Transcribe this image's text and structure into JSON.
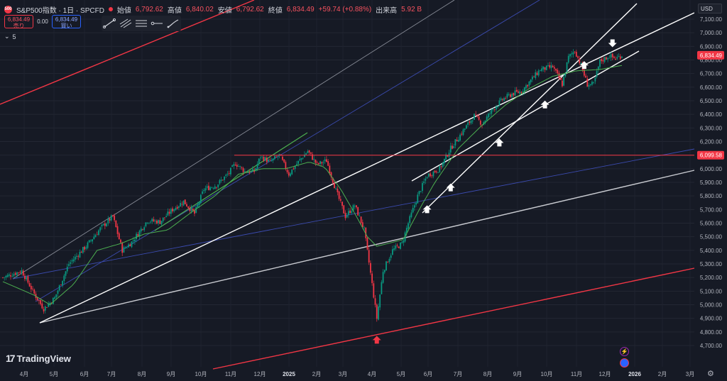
{
  "header": {
    "badge": "500",
    "symbol": "S&P500指数 · 1日 · SPCFD",
    "open_label": "始値",
    "open": "6,792.62",
    "high_label": "高値",
    "high": "6,840.02",
    "low_label": "安値",
    "low": "6,792.62",
    "close_label": "終値",
    "close": "6,834.49",
    "change": "+59.74 (+0.88%)",
    "volume_label": "出来高",
    "volume": "5.92 B"
  },
  "trade": {
    "sell_price": "6,834.49",
    "sell_label": "売り",
    "spread": "0.00",
    "buy_price": "6,834.49",
    "buy_label": "買い"
  },
  "indicator": {
    "chevron": "⌄",
    "count": "5"
  },
  "currency": "USD",
  "brand": {
    "mark": "17",
    "name": "TradingView"
  },
  "colors": {
    "bull": "#089981",
    "bear": "#f23645",
    "sma": "#4caf50",
    "white_line": "#ffffff",
    "blue_line": "#2962ff",
    "red_line": "#f23645"
  },
  "icons": [
    "trend-line-icon",
    "pitchfork-icon",
    "fib-icon",
    "ray-icon",
    "brush-icon"
  ],
  "chart_data": {
    "type": "candlestick",
    "price_axis": {
      "min": 4700,
      "max": 7100,
      "ticks": [
        4700,
        4800,
        4900,
        5000,
        5100,
        5200,
        5300,
        5400,
        5500,
        5600,
        5700,
        5800,
        5900,
        6000,
        6100,
        6200,
        6300,
        6400,
        6500,
        6600,
        6700,
        6800,
        6900,
        7000,
        7100
      ],
      "tick_labels": [
        "4,700.00",
        "4,800.00",
        "4,900.00",
        "5,000.00",
        "5,100.00",
        "5,200.00",
        "5,300.00",
        "5,400.00",
        "5,500.00",
        "5,600.00",
        "5,700.00",
        "5,800.00",
        "5,900.00",
        "6,000.00",
        "6,100.00",
        "6,200.00",
        "6,300.00",
        "6,400.00",
        "6,500.00",
        "6,600.00",
        "6,700.00",
        "6,800.00",
        "6,900.00",
        "7,000.00",
        "7,100.00"
      ]
    },
    "time_axis": {
      "labels": [
        "4月",
        "5月",
        "6月",
        "7月",
        "8月",
        "9月",
        "10月",
        "11月",
        "12月",
        "2025",
        "2月",
        "3月",
        "4月",
        "5月",
        "6月",
        "7月",
        "8月",
        "9月",
        "10月",
        "11月",
        "12月",
        "2026",
        "2月",
        "3月"
      ],
      "bold": [
        "2025",
        "2026"
      ]
    },
    "last_price_label": "6,834.49",
    "horizontal_level": {
      "value": 6099.58,
      "label": "6,099.58"
    },
    "path": [
      [
        0,
        5200
      ],
      [
        12,
        5250
      ],
      [
        20,
        5080
      ],
      [
        26,
        4970
      ],
      [
        33,
        5050
      ],
      [
        42,
        5300
      ],
      [
        53,
        5430
      ],
      [
        62,
        5560
      ],
      [
        70,
        5650
      ],
      [
        76,
        5400
      ],
      [
        82,
        5460
      ],
      [
        92,
        5620
      ],
      [
        100,
        5610
      ],
      [
        108,
        5700
      ],
      [
        115,
        5760
      ],
      [
        122,
        5670
      ],
      [
        128,
        5850
      ],
      [
        136,
        5880
      ],
      [
        144,
        5970
      ],
      [
        148,
        6040
      ],
      [
        154,
        5980
      ],
      [
        160,
        5980
      ],
      [
        164,
        6090
      ],
      [
        170,
        6050
      ],
      [
        176,
        6100
      ],
      [
        182,
        5960
      ],
      [
        188,
        6050
      ],
      [
        194,
        6130
      ],
      [
        200,
        6030
      ],
      [
        206,
        6060
      ],
      [
        212,
        5840
      ],
      [
        218,
        5650
      ],
      [
        224,
        5730
      ],
      [
        230,
        5550
      ],
      [
        235,
        5150
      ],
      [
        238,
        4900
      ],
      [
        242,
        5250
      ],
      [
        248,
        5400
      ],
      [
        254,
        5450
      ],
      [
        258,
        5600
      ],
      [
        264,
        5800
      ],
      [
        270,
        5950
      ],
      [
        278,
        6000
      ],
      [
        285,
        6150
      ],
      [
        293,
        6280
      ],
      [
        300,
        6390
      ],
      [
        305,
        6330
      ],
      [
        312,
        6440
      ],
      [
        318,
        6510
      ],
      [
        324,
        6550
      ],
      [
        330,
        6570
      ],
      [
        336,
        6650
      ],
      [
        342,
        6730
      ],
      [
        350,
        6750
      ],
      [
        356,
        6620
      ],
      [
        360,
        6820
      ],
      [
        364,
        6870
      ],
      [
        368,
        6760
      ],
      [
        372,
        6620
      ],
      [
        376,
        6620
      ],
      [
        380,
        6790
      ],
      [
        386,
        6830
      ],
      [
        390,
        6810
      ],
      [
        394,
        6834.49
      ]
    ],
    "sma_path": [
      [
        0,
        5170
      ],
      [
        20,
        5070
      ],
      [
        30,
        5000
      ],
      [
        45,
        5150
      ],
      [
        60,
        5400
      ],
      [
        75,
        5450
      ],
      [
        90,
        5520
      ],
      [
        105,
        5550
      ],
      [
        120,
        5680
      ],
      [
        135,
        5800
      ],
      [
        150,
        5960
      ],
      [
        165,
        6000
      ],
      [
        180,
        6000
      ],
      [
        195,
        6050
      ],
      [
        205,
        6010
      ],
      [
        215,
        5850
      ],
      [
        225,
        5650
      ],
      [
        232,
        5500
      ],
      [
        238,
        5430
      ],
      [
        245,
        5450
      ],
      [
        255,
        5480
      ],
      [
        265,
        5700
      ],
      [
        275,
        5900
      ],
      [
        290,
        6150
      ],
      [
        305,
        6320
      ],
      [
        320,
        6470
      ],
      [
        335,
        6590
      ],
      [
        350,
        6680
      ],
      [
        365,
        6720
      ],
      [
        380,
        6730
      ],
      [
        394,
        6760
      ]
    ],
    "annotations": [
      {
        "kind": "up-arrow",
        "i": 270,
        "v": 5700
      },
      {
        "kind": "up-arrow",
        "i": 285,
        "v": 5860
      },
      {
        "kind": "up-arrow",
        "i": 316,
        "v": 6190
      },
      {
        "kind": "up-arrow",
        "i": 345,
        "v": 6470
      },
      {
        "kind": "up-arrow",
        "i": 370,
        "v": 6760
      },
      {
        "kind": "down-arrow",
        "i": 388,
        "v": 6920
      },
      {
        "kind": "up-arrow-red",
        "i": 238,
        "v": 4740
      }
    ]
  }
}
